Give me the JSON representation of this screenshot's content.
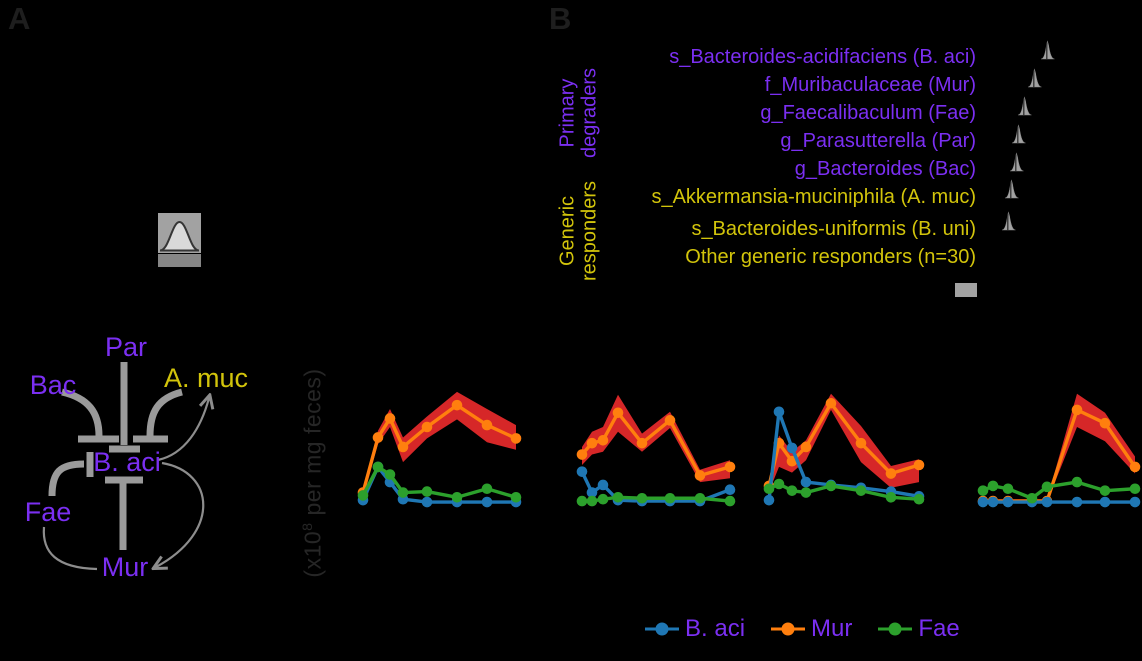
{
  "panels": {
    "a_label": "A",
    "b_label": "B"
  },
  "colors": {
    "purple": "#7B2FF2",
    "yellow": "#D2C40B",
    "dark_label": "#1e1e1e",
    "gray_thick": "#9a9a9a",
    "gray_thin": "#8d8d8d",
    "gray_glyph": "#a2a2a2",
    "blue": "#1f77b4",
    "orange": "#ff7f0e",
    "green": "#2ca02c",
    "red_band": "#d62728"
  },
  "ylabel": {
    "prefix": "(x10",
    "sup": "8",
    "suffix": " per mg feces)"
  },
  "diagram": {
    "nodes": [
      {
        "label": "Par",
        "group": "primary"
      },
      {
        "label": "Bac",
        "group": "primary"
      },
      {
        "label": "A. muc",
        "group": "generic"
      },
      {
        "label": "B. aci",
        "group": "primary"
      },
      {
        "label": "Fae",
        "group": "primary"
      },
      {
        "label": "Mur",
        "group": "primary"
      }
    ],
    "inhibition_edges": [
      "Par -| B. aci",
      "Bac -| B. aci",
      "A. muc -| B. aci",
      "Fae -| B. aci",
      "Mur -| B. aci"
    ],
    "promotion_edges": [
      "B. aci -> A. muc",
      "B. aci -> Mur",
      "Fae -> Mur"
    ]
  },
  "panelB": {
    "group_labels": [
      {
        "text": "Primary\ndegraders",
        "group": "primary"
      },
      {
        "text": "Generic\nresponders",
        "group": "generic"
      }
    ],
    "rows": [
      {
        "label": "s_Bacteroides-acidifaciens (B. aci)",
        "group": "primary",
        "has_glyph": true
      },
      {
        "label": "f_Muribaculaceae (Mur)",
        "group": "primary",
        "has_glyph": true
      },
      {
        "label": "g_Faecalibaculum (Fae)",
        "group": "primary",
        "has_glyph": true
      },
      {
        "label": "g_Parasutterella (Par)",
        "group": "primary",
        "has_glyph": true
      },
      {
        "label": "g_Bacteroides (Bac)",
        "group": "primary",
        "has_glyph": true
      },
      {
        "label": "s_Akkermansia-muciniphila (A. muc)",
        "group": "generic",
        "has_glyph": true
      },
      {
        "label": "s_Bacteroides-uniformis (B. uni)",
        "group": "generic",
        "has_glyph": true
      },
      {
        "label": "Other generic responders (n=30)",
        "group": "generic",
        "has_glyph": false
      }
    ]
  },
  "legend": {
    "items": [
      {
        "label": "B. aci",
        "color": "#1f77b4"
      },
      {
        "label": "Mur",
        "color": "#ff7f0e"
      },
      {
        "label": "Fae",
        "color": "#2ca02c"
      }
    ]
  },
  "chart_data": {
    "type": "line",
    "ylabel": "(x10^8 per mg feces)",
    "x_label": "",
    "x": [
      1,
      2,
      3,
      4,
      5,
      6,
      7,
      8
    ],
    "note": "4 subplots, axes unlabeled in figure; values estimated in x10^8 per mg feces. Mur series carries a red confidence band.",
    "legend_position": "bottom",
    "grid": false,
    "subplots": [
      {
        "name": "subplot-1",
        "series": [
          {
            "name": "Mur",
            "color": "#ff7f0e",
            "values": [
              1.1,
              6.9,
              8.9,
              5.9,
              8.0,
              10.3,
              8.2,
              6.8
            ],
            "band_upper": [
              1.5,
              7.6,
              9.9,
              6.9,
              9.1,
              11.7,
              9.9,
              8.2
            ],
            "band_lower": [
              0.7,
              6.2,
              8.0,
              4.3,
              6.8,
              8.8,
              6.4,
              5.6
            ]
          },
          {
            "name": "B. aci",
            "color": "#1f77b4",
            "values": [
              0.3,
              3.8,
              2.2,
              0.4,
              0.1,
              0.1,
              0.1,
              0.1
            ]
          },
          {
            "name": "Fae",
            "color": "#2ca02c",
            "values": [
              0.8,
              3.8,
              3.0,
              1.1,
              1.2,
              0.6,
              1.5,
              0.6
            ]
          }
        ]
      },
      {
        "name": "subplot-2",
        "series": [
          {
            "name": "Mur",
            "color": "#ff7f0e",
            "values": [
              5.1,
              6.3,
              6.6,
              9.5,
              6.3,
              8.7,
              2.9,
              3.8
            ],
            "band_upper": [
              5.9,
              7.5,
              8.0,
              11.4,
              7.3,
              9.6,
              3.5,
              4.5
            ],
            "band_lower": [
              4.0,
              5.1,
              5.4,
              7.5,
              5.4,
              7.9,
              2.2,
              2.6
            ]
          },
          {
            "name": "B. aci",
            "color": "#1f77b4",
            "values": [
              3.3,
              1.1,
              1.9,
              0.3,
              0.2,
              0.2,
              0.2,
              1.4
            ]
          },
          {
            "name": "Fae",
            "color": "#2ca02c",
            "values": [
              0.2,
              0.2,
              0.4,
              0.6,
              0.5,
              0.5,
              0.5,
              0.2
            ]
          }
        ]
      },
      {
        "name": "subplot-3",
        "series": [
          {
            "name": "Mur",
            "color": "#ff7f0e",
            "values": [
              1.8,
              6.3,
              4.4,
              5.9,
              10.5,
              6.3,
              3.1,
              4.0
            ],
            "band_upper": [
              2.3,
              7.1,
              5.4,
              6.6,
              11.5,
              8.1,
              3.9,
              4.6
            ],
            "band_lower": [
              1.2,
              3.8,
              3.2,
              4.5,
              9.8,
              4.3,
              1.6,
              2.2
            ]
          },
          {
            "name": "B. aci",
            "color": "#1f77b4",
            "values": [
              0.3,
              9.6,
              5.8,
              2.2,
              1.9,
              1.6,
              1.2,
              0.7
            ]
          },
          {
            "name": "Fae",
            "color": "#2ca02c",
            "values": [
              1.5,
              2.0,
              1.3,
              1.1,
              1.8,
              1.3,
              0.6,
              0.4
            ]
          }
        ]
      },
      {
        "name": "subplot-4",
        "series": [
          {
            "name": "Mur",
            "color": "#ff7f0e",
            "values": [
              0.2,
              0.2,
              0.2,
              0.2,
              0.2,
              9.8,
              8.4,
              3.8
            ],
            "band_upper": [
              0.4,
              0.4,
              0.4,
              0.4,
              0.4,
              11.5,
              9.5,
              4.9
            ],
            "band_lower": [
              0.1,
              0.1,
              0.1,
              0.1,
              0.1,
              8.0,
              6.5,
              3.1
            ]
          },
          {
            "name": "B. aci",
            "color": "#1f77b4",
            "values": [
              0.1,
              0.1,
              0.1,
              0.1,
              0.1,
              0.1,
              0.1,
              0.1
            ]
          },
          {
            "name": "Fae",
            "color": "#2ca02c",
            "values": [
              1.3,
              1.8,
              1.5,
              0.5,
              1.7,
              2.2,
              1.3,
              1.5
            ]
          }
        ]
      }
    ]
  }
}
